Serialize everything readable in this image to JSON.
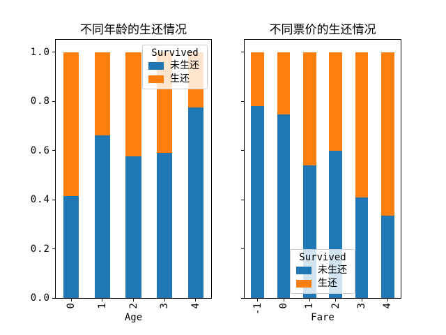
{
  "figure": {
    "background": "#ffffff",
    "spine_color": "#000000"
  },
  "chart_data": [
    {
      "type": "bar",
      "stacked": true,
      "normalized": true,
      "title": "不同年龄的生还情况",
      "xlabel": "Age",
      "ylabel": "",
      "categories": [
        "0",
        "1",
        "2",
        "3",
        "4"
      ],
      "series": [
        {
          "name": "未生还",
          "key": "not-survived",
          "color": "#1f77b4",
          "values": [
            0.415,
            0.66,
            0.575,
            0.59,
            0.775
          ]
        },
        {
          "name": "生还",
          "key": "survived",
          "color": "#ff7f0e",
          "values": [
            0.585,
            0.34,
            0.425,
            0.41,
            0.225
          ]
        }
      ],
      "ylim": [
        0,
        1.05
      ],
      "bar_width_fraction": 0.5,
      "xtick_rotation": 90,
      "ytick_values": [
        0,
        0.2,
        0.4,
        0.6,
        0.8,
        1.0
      ],
      "ytick_labels": [
        "0.0",
        "0.2",
        "0.4",
        "0.6",
        "0.8",
        "1.0"
      ],
      "ytick_labels_visible": true,
      "grid": false,
      "legend": {
        "title": "Survived",
        "position": "upper-right"
      }
    },
    {
      "type": "bar",
      "stacked": true,
      "normalized": true,
      "title": "不同票价的生还情况",
      "xlabel": "Fare",
      "ylabel": "",
      "categories": [
        "-1",
        "0",
        "1",
        "2",
        "3",
        "4"
      ],
      "series": [
        {
          "name": "未生还",
          "key": "not-survived",
          "color": "#1f77b4",
          "values": [
            0.78,
            0.745,
            0.54,
            0.6,
            0.41,
            0.335
          ]
        },
        {
          "name": "生还",
          "key": "survived",
          "color": "#ff7f0e",
          "values": [
            0.22,
            0.255,
            0.46,
            0.4,
            0.59,
            0.665
          ]
        }
      ],
      "ylim": [
        0,
        1.05
      ],
      "bar_width_fraction": 0.5,
      "xtick_rotation": 90,
      "ytick_values": [
        0,
        0.2,
        0.4,
        0.6,
        0.8,
        1.0
      ],
      "ytick_labels": [
        "0.0",
        "0.2",
        "0.4",
        "0.6",
        "0.8",
        "1.0"
      ],
      "ytick_labels_visible": false,
      "grid": false,
      "legend": {
        "title": "Survived",
        "position": "lower-center"
      }
    }
  ]
}
